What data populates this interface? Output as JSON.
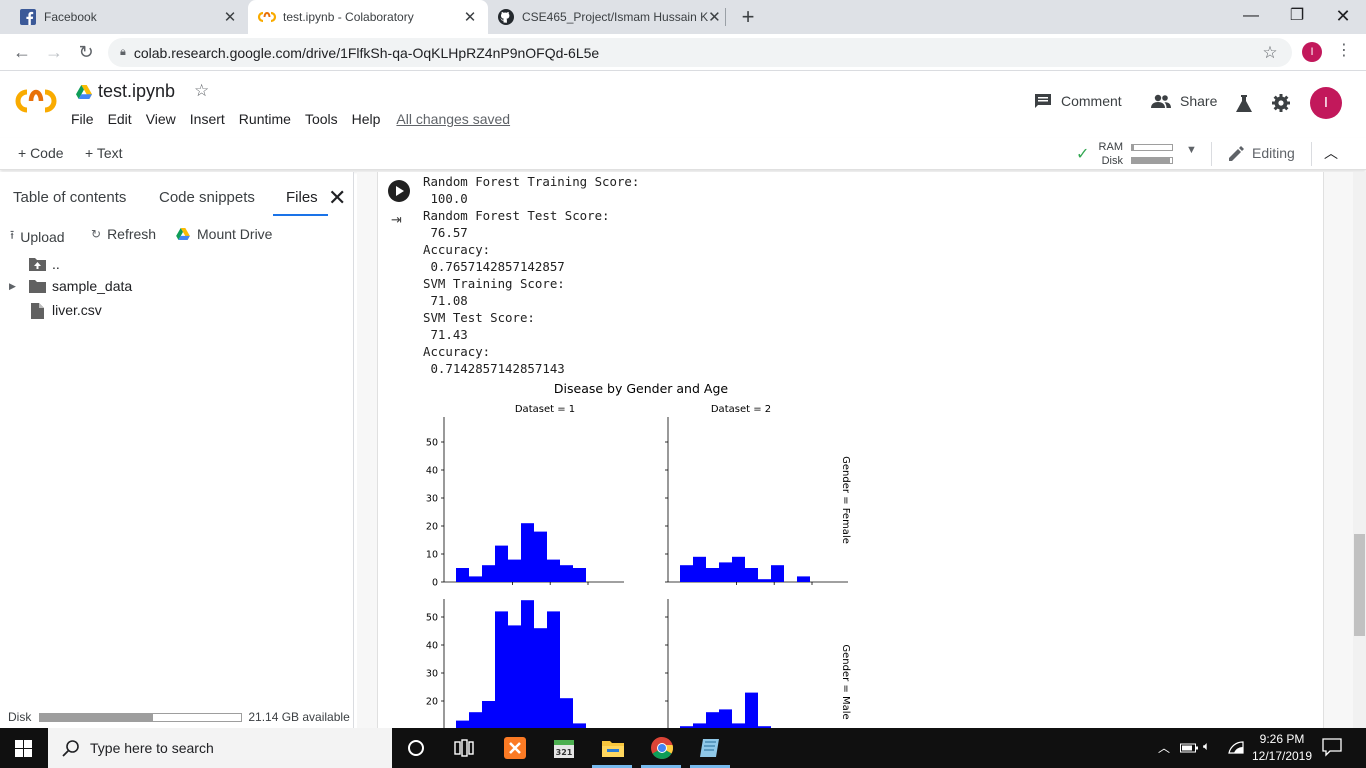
{
  "browser": {
    "tabs": [
      {
        "title": "Facebook",
        "icon": "facebook-icon"
      },
      {
        "title": "test.ipynb - Colaboratory",
        "icon": "colab-icon"
      },
      {
        "title": "CSE465_Project/Ismam Hussain K",
        "icon": "github-icon"
      }
    ],
    "new_tab": "+",
    "url": "colab.research.google.com/drive/1FlfkSh-qa-OqKLHpRZ4nP9nOFQd-6L5e",
    "profile_initial": "I"
  },
  "colab": {
    "notebook_title": "test.ipynb",
    "menu": [
      "File",
      "Edit",
      "View",
      "Insert",
      "Runtime",
      "Tools",
      "Help"
    ],
    "save_status": "All changes saved",
    "comment_label": "Comment",
    "share_label": "Share",
    "avatar_initial": "I",
    "add_code_label": "+ Code",
    "add_text_label": "+ Text",
    "ram_label": "RAM",
    "disk_label": "Disk",
    "ram_fraction": 0.05,
    "disk_fraction": 0.95,
    "editing_label": "Editing"
  },
  "sidebar": {
    "tabs": [
      "Table of contents",
      "Code snippets",
      "Files"
    ],
    "active_tab": "Files",
    "actions": {
      "upload": "Upload",
      "refresh": "Refresh",
      "mount": "Mount Drive"
    },
    "tree": [
      {
        "label": "..",
        "type": "parent"
      },
      {
        "label": "sample_data",
        "type": "folder"
      },
      {
        "label": "liver.csv",
        "type": "file"
      }
    ],
    "disk_label": "Disk",
    "disk_available": "21.14 GB available",
    "disk_fraction": 0.56
  },
  "output_lines": [
    "Random Forest Training Score:",
    " 100.0",
    "Random Forest Test Score:",
    " 76.57",
    "Accuracy:",
    " 0.7657142857142857",
    "SVM Training Score:",
    " 71.08",
    "SVM Test Score:",
    " 71.43",
    "Accuracy:",
    " 0.7142857142857143"
  ],
  "chart_data": {
    "type": "bar",
    "title": "Disease by Gender and Age",
    "col_titles": [
      "Dataset = 1",
      "Dataset = 2"
    ],
    "row_titles": [
      "Gender = Female",
      "Gender = Male"
    ],
    "y_ticks_female": [
      0,
      10,
      20,
      30,
      40,
      50
    ],
    "y_ticks_male": [
      20,
      30,
      40,
      50
    ],
    "ylim": [
      0,
      58
    ],
    "color": "#0000ff",
    "bins_per_panel": 12,
    "panels": [
      {
        "row": "Gender = Female",
        "col": "Dataset = 1",
        "values": [
          5,
          2,
          6,
          13,
          8,
          21,
          18,
          8,
          6,
          5,
          0,
          0
        ]
      },
      {
        "row": "Gender = Female",
        "col": "Dataset = 2",
        "values": [
          6,
          9,
          5,
          7,
          9,
          5,
          1,
          6,
          0,
          2,
          0,
          0
        ]
      },
      {
        "row": "Gender = Male",
        "col": "Dataset = 1",
        "values": [
          13,
          16,
          20,
          52,
          47,
          56,
          46,
          52,
          21,
          12,
          0,
          0
        ]
      },
      {
        "row": "Gender = Male",
        "col": "Dataset = 2",
        "values": [
          11,
          12,
          16,
          17,
          12,
          23,
          11,
          0,
          0,
          0,
          0,
          0
        ]
      }
    ]
  },
  "taskbar": {
    "search_placeholder": "Type here to search",
    "time": "9:26 PM",
    "date": "12/17/2019"
  }
}
